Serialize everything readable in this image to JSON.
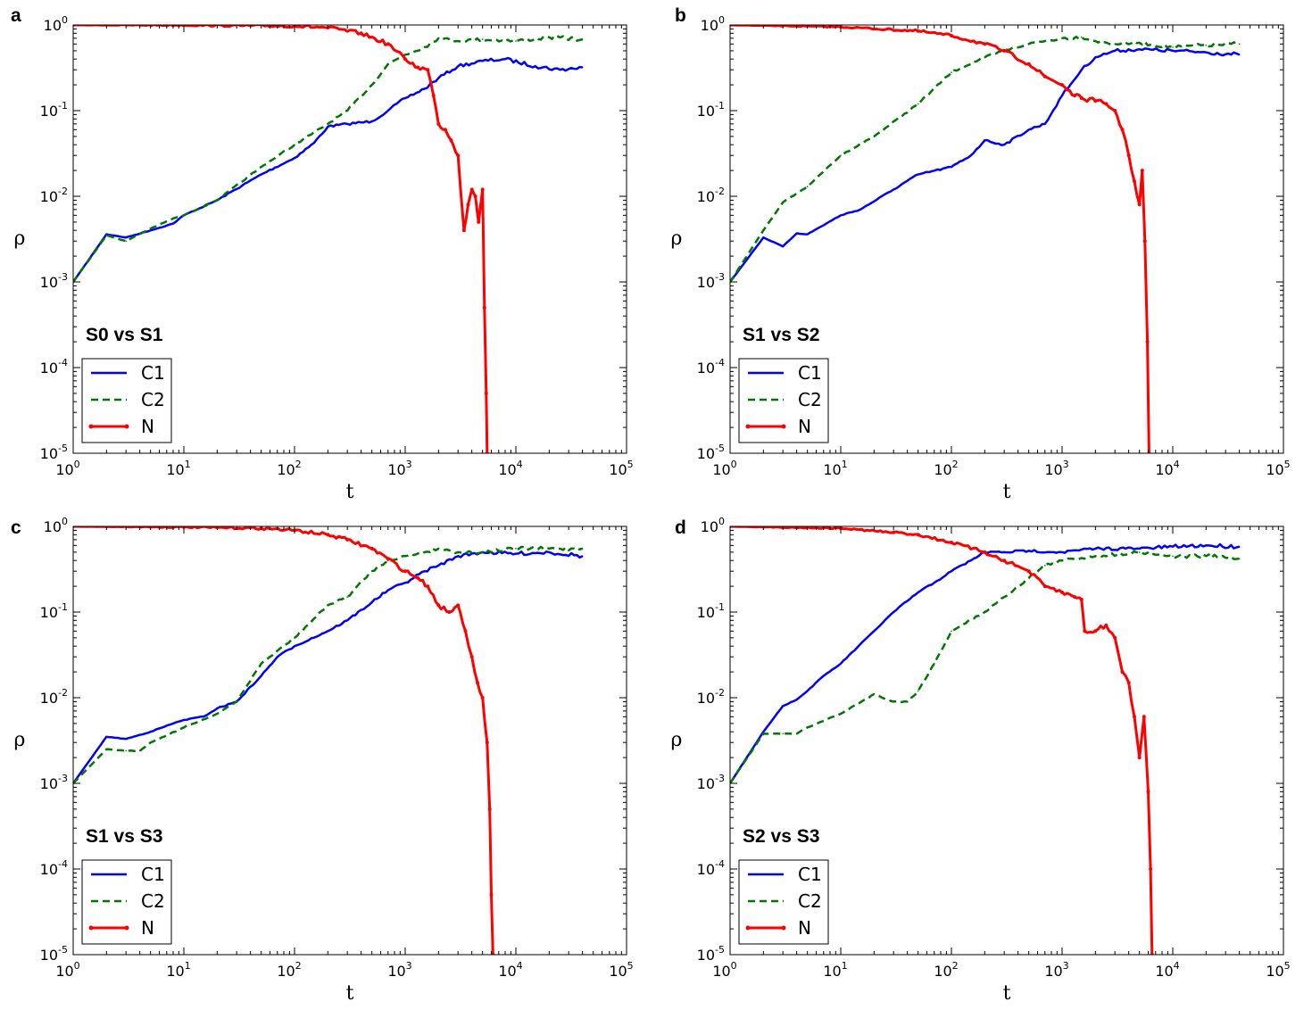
{
  "chart_data": [
    {
      "type": "line",
      "panel": "a",
      "annotation": "S0 vs S1",
      "xlabel": "t",
      "ylabel": "ρ",
      "xscale": "log",
      "yscale": "log",
      "xlim": [
        1,
        100000
      ],
      "ylim": [
        1e-05,
        1
      ],
      "xticks": [
        {
          "base": "10",
          "exp": "0"
        },
        {
          "base": "10",
          "exp": "1"
        },
        {
          "base": "10",
          "exp": "2"
        },
        {
          "base": "10",
          "exp": "3"
        },
        {
          "base": "10",
          "exp": "4"
        },
        {
          "base": "10",
          "exp": "5"
        }
      ],
      "yticks": [
        {
          "base": "10",
          "exp": "-5"
        },
        {
          "base": "10",
          "exp": "-4"
        },
        {
          "base": "10",
          "exp": "-3"
        },
        {
          "base": "10",
          "exp": "-2"
        },
        {
          "base": "10",
          "exp": "-1"
        },
        {
          "base": "10",
          "exp": "0"
        }
      ],
      "legend_position": "lower-left",
      "series": [
        {
          "name": "C1",
          "color": "#0000ff",
          "style": "solid",
          "x": [
            1,
            2,
            3,
            5,
            8,
            10,
            20,
            50,
            100,
            150,
            200,
            300,
            500,
            700,
            1000,
            1500,
            2000,
            3000,
            5000,
            8000,
            15000,
            25000,
            40000
          ],
          "y": [
            0.001,
            0.0036,
            0.0033,
            0.004,
            0.0048,
            0.006,
            0.009,
            0.018,
            0.028,
            0.042,
            0.065,
            0.07,
            0.075,
            0.1,
            0.14,
            0.18,
            0.24,
            0.33,
            0.38,
            0.4,
            0.33,
            0.3,
            0.32
          ]
        },
        {
          "name": "C2",
          "color": "#007700",
          "style": "dashed",
          "x": [
            1,
            2,
            3,
            5,
            8,
            10,
            20,
            50,
            100,
            200,
            300,
            500,
            700,
            1000,
            1500,
            2000,
            3000,
            5000,
            10000,
            20000,
            40000
          ],
          "y": [
            0.001,
            0.0035,
            0.003,
            0.0042,
            0.0055,
            0.006,
            0.009,
            0.022,
            0.04,
            0.07,
            0.1,
            0.2,
            0.35,
            0.45,
            0.55,
            0.7,
            0.65,
            0.68,
            0.65,
            0.72,
            0.68
          ]
        },
        {
          "name": "N",
          "color": "#ff0000",
          "style": "solid-dots",
          "x": [
            1,
            10,
            100,
            200,
            400,
            700,
            1000,
            1300,
            1600,
            1800,
            2000,
            2300,
            2600,
            3000,
            3400,
            3700,
            4000,
            4300,
            4600,
            5000,
            5200,
            5400,
            5500
          ],
          "y": [
            1,
            0.995,
            0.97,
            0.93,
            0.8,
            0.6,
            0.4,
            0.32,
            0.3,
            0.15,
            0.07,
            0.06,
            0.045,
            0.03,
            0.004,
            0.008,
            0.012,
            0.01,
            0.005,
            0.012,
            0.0005,
            5e-05,
            1e-05
          ]
        }
      ]
    },
    {
      "type": "line",
      "panel": "b",
      "annotation": "S1 vs S2",
      "xlabel": "t",
      "ylabel": "ρ",
      "xscale": "log",
      "yscale": "log",
      "xlim": [
        1,
        100000
      ],
      "ylim": [
        1e-05,
        1
      ],
      "xticks": [
        {
          "base": "10",
          "exp": "0"
        },
        {
          "base": "10",
          "exp": "1"
        },
        {
          "base": "10",
          "exp": "2"
        },
        {
          "base": "10",
          "exp": "3"
        },
        {
          "base": "10",
          "exp": "4"
        },
        {
          "base": "10",
          "exp": "5"
        }
      ],
      "yticks": [
        {
          "base": "10",
          "exp": "-5"
        },
        {
          "base": "10",
          "exp": "-4"
        },
        {
          "base": "10",
          "exp": "-3"
        },
        {
          "base": "10",
          "exp": "-2"
        },
        {
          "base": "10",
          "exp": "-1"
        },
        {
          "base": "10",
          "exp": "0"
        }
      ],
      "legend_position": "lower-left",
      "series": [
        {
          "name": "C1",
          "color": "#0000ff",
          "style": "solid",
          "x": [
            1,
            2,
            3,
            4,
            5,
            10,
            15,
            30,
            50,
            100,
            150,
            200,
            300,
            500,
            700,
            1000,
            1500,
            2000,
            3000,
            5000,
            10000,
            20000,
            40000
          ],
          "y": [
            0.001,
            0.0033,
            0.0026,
            0.0037,
            0.0036,
            0.006,
            0.007,
            0.012,
            0.018,
            0.022,
            0.03,
            0.045,
            0.04,
            0.06,
            0.07,
            0.15,
            0.3,
            0.42,
            0.5,
            0.52,
            0.5,
            0.48,
            0.45
          ]
        },
        {
          "name": "C2",
          "color": "#007700",
          "style": "dashed",
          "x": [
            1,
            2,
            3,
            5,
            10,
            20,
            50,
            100,
            200,
            300,
            500,
            700,
            1000,
            1500,
            2000,
            3000,
            5000,
            10000,
            20000,
            40000
          ],
          "y": [
            0.001,
            0.004,
            0.0085,
            0.013,
            0.03,
            0.05,
            0.12,
            0.28,
            0.42,
            0.5,
            0.6,
            0.65,
            0.7,
            0.72,
            0.65,
            0.6,
            0.62,
            0.55,
            0.58,
            0.6
          ]
        },
        {
          "name": "N",
          "color": "#ff0000",
          "style": "solid-dots",
          "x": [
            1,
            10,
            50,
            100,
            200,
            300,
            500,
            700,
            1000,
            1300,
            1500,
            2000,
            2500,
            3000,
            3500,
            4000,
            4500,
            5000,
            5300,
            5600,
            5900,
            6100
          ],
          "y": [
            1,
            0.95,
            0.85,
            0.75,
            0.6,
            0.5,
            0.35,
            0.25,
            0.2,
            0.15,
            0.14,
            0.13,
            0.12,
            0.1,
            0.06,
            0.03,
            0.015,
            0.008,
            0.02,
            0.003,
            0.0002,
            1e-05
          ]
        }
      ]
    },
    {
      "type": "line",
      "panel": "c",
      "annotation": "S1 vs S3",
      "xlabel": "t",
      "ylabel": "ρ",
      "xscale": "log",
      "yscale": "log",
      "xlim": [
        1,
        100000
      ],
      "ylim": [
        1e-05,
        1
      ],
      "xticks": [
        {
          "base": "10",
          "exp": "0"
        },
        {
          "base": "10",
          "exp": "1"
        },
        {
          "base": "10",
          "exp": "2"
        },
        {
          "base": "10",
          "exp": "3"
        },
        {
          "base": "10",
          "exp": "4"
        },
        {
          "base": "10",
          "exp": "5"
        }
      ],
      "yticks": [
        {
          "base": "10",
          "exp": "-5"
        },
        {
          "base": "10",
          "exp": "-4"
        },
        {
          "base": "10",
          "exp": "-3"
        },
        {
          "base": "10",
          "exp": "-2"
        },
        {
          "base": "10",
          "exp": "-1"
        },
        {
          "base": "10",
          "exp": "0"
        }
      ],
      "legend_position": "lower-left",
      "series": [
        {
          "name": "C1",
          "color": "#0000ff",
          "style": "solid",
          "x": [
            1,
            2,
            3,
            5,
            8,
            10,
            15,
            20,
            30,
            50,
            70,
            100,
            200,
            300,
            500,
            700,
            1000,
            1500,
            2000,
            3000,
            5000,
            10000,
            20000,
            40000
          ],
          "y": [
            0.001,
            0.0035,
            0.0033,
            0.004,
            0.005,
            0.0055,
            0.006,
            0.0075,
            0.009,
            0.018,
            0.03,
            0.04,
            0.06,
            0.08,
            0.13,
            0.18,
            0.22,
            0.3,
            0.35,
            0.45,
            0.5,
            0.48,
            0.5,
            0.45
          ]
        },
        {
          "name": "C2",
          "color": "#007700",
          "style": "dashed",
          "x": [
            1,
            2,
            3,
            4,
            5,
            10,
            20,
            30,
            50,
            100,
            200,
            300,
            500,
            700,
            1000,
            1500,
            2000,
            3000,
            5000,
            10000,
            20000,
            40000
          ],
          "y": [
            0.001,
            0.0025,
            0.0024,
            0.0024,
            0.003,
            0.0045,
            0.0065,
            0.009,
            0.025,
            0.05,
            0.12,
            0.15,
            0.3,
            0.4,
            0.45,
            0.5,
            0.55,
            0.5,
            0.5,
            0.55,
            0.55,
            0.55
          ]
        },
        {
          "name": "N",
          "color": "#ff0000",
          "style": "solid-dots",
          "x": [
            1,
            10,
            50,
            100,
            200,
            300,
            500,
            700,
            1000,
            1300,
            1600,
            2000,
            2500,
            3000,
            3500,
            4000,
            4500,
            5000,
            5500,
            5800,
            6000,
            6200
          ],
          "y": [
            1,
            0.98,
            0.95,
            0.9,
            0.8,
            0.7,
            0.55,
            0.42,
            0.3,
            0.25,
            0.2,
            0.12,
            0.1,
            0.12,
            0.06,
            0.03,
            0.015,
            0.01,
            0.003,
            0.0005,
            5e-05,
            1e-05
          ]
        }
      ]
    },
    {
      "type": "line",
      "panel": "d",
      "annotation": "S2 vs S3",
      "xlabel": "t",
      "ylabel": "ρ",
      "xscale": "log",
      "yscale": "log",
      "xlim": [
        1,
        100000
      ],
      "ylim": [
        1e-05,
        1
      ],
      "xticks": [
        {
          "base": "10",
          "exp": "0"
        },
        {
          "base": "10",
          "exp": "1"
        },
        {
          "base": "10",
          "exp": "2"
        },
        {
          "base": "10",
          "exp": "3"
        },
        {
          "base": "10",
          "exp": "4"
        },
        {
          "base": "10",
          "exp": "5"
        }
      ],
      "yticks": [
        {
          "base": "10",
          "exp": "-5"
        },
        {
          "base": "10",
          "exp": "-4"
        },
        {
          "base": "10",
          "exp": "-3"
        },
        {
          "base": "10",
          "exp": "-2"
        },
        {
          "base": "10",
          "exp": "-1"
        },
        {
          "base": "10",
          "exp": "0"
        }
      ],
      "legend_position": "lower-left",
      "series": [
        {
          "name": "C1",
          "color": "#0000ff",
          "style": "solid",
          "x": [
            1,
            2,
            3,
            4,
            5,
            7,
            10,
            20,
            30,
            50,
            70,
            100,
            150,
            200,
            300,
            500,
            1000,
            2000,
            5000,
            10000,
            20000,
            40000
          ],
          "y": [
            0.001,
            0.004,
            0.008,
            0.0095,
            0.012,
            0.018,
            0.025,
            0.06,
            0.1,
            0.17,
            0.22,
            0.3,
            0.4,
            0.5,
            0.5,
            0.52,
            0.5,
            0.55,
            0.55,
            0.58,
            0.6,
            0.58
          ]
        },
        {
          "name": "C2",
          "color": "#007700",
          "style": "dashed",
          "x": [
            1,
            2,
            3,
            4,
            5,
            10,
            20,
            30,
            40,
            50,
            70,
            100,
            200,
            300,
            500,
            700,
            1000,
            2000,
            5000,
            10000,
            20000,
            40000
          ],
          "y": [
            0.001,
            0.0038,
            0.0038,
            0.0038,
            0.0045,
            0.0065,
            0.011,
            0.009,
            0.009,
            0.012,
            0.025,
            0.06,
            0.1,
            0.15,
            0.25,
            0.35,
            0.4,
            0.45,
            0.5,
            0.45,
            0.45,
            0.42
          ]
        },
        {
          "name": "N",
          "color": "#ff0000",
          "style": "solid-dots",
          "x": [
            1,
            10,
            30,
            50,
            100,
            200,
            300,
            500,
            700,
            1000,
            1300,
            1500,
            1600,
            2000,
            2500,
            3000,
            3500,
            4000,
            4500,
            5000,
            5500,
            6000,
            6300,
            6500
          ],
          "y": [
            1,
            0.95,
            0.85,
            0.8,
            0.65,
            0.5,
            0.4,
            0.3,
            0.2,
            0.17,
            0.15,
            0.14,
            0.06,
            0.06,
            0.07,
            0.05,
            0.02,
            0.015,
            0.006,
            0.002,
            0.006,
            0.0008,
            0.0001,
            1e-05
          ]
        }
      ]
    }
  ]
}
